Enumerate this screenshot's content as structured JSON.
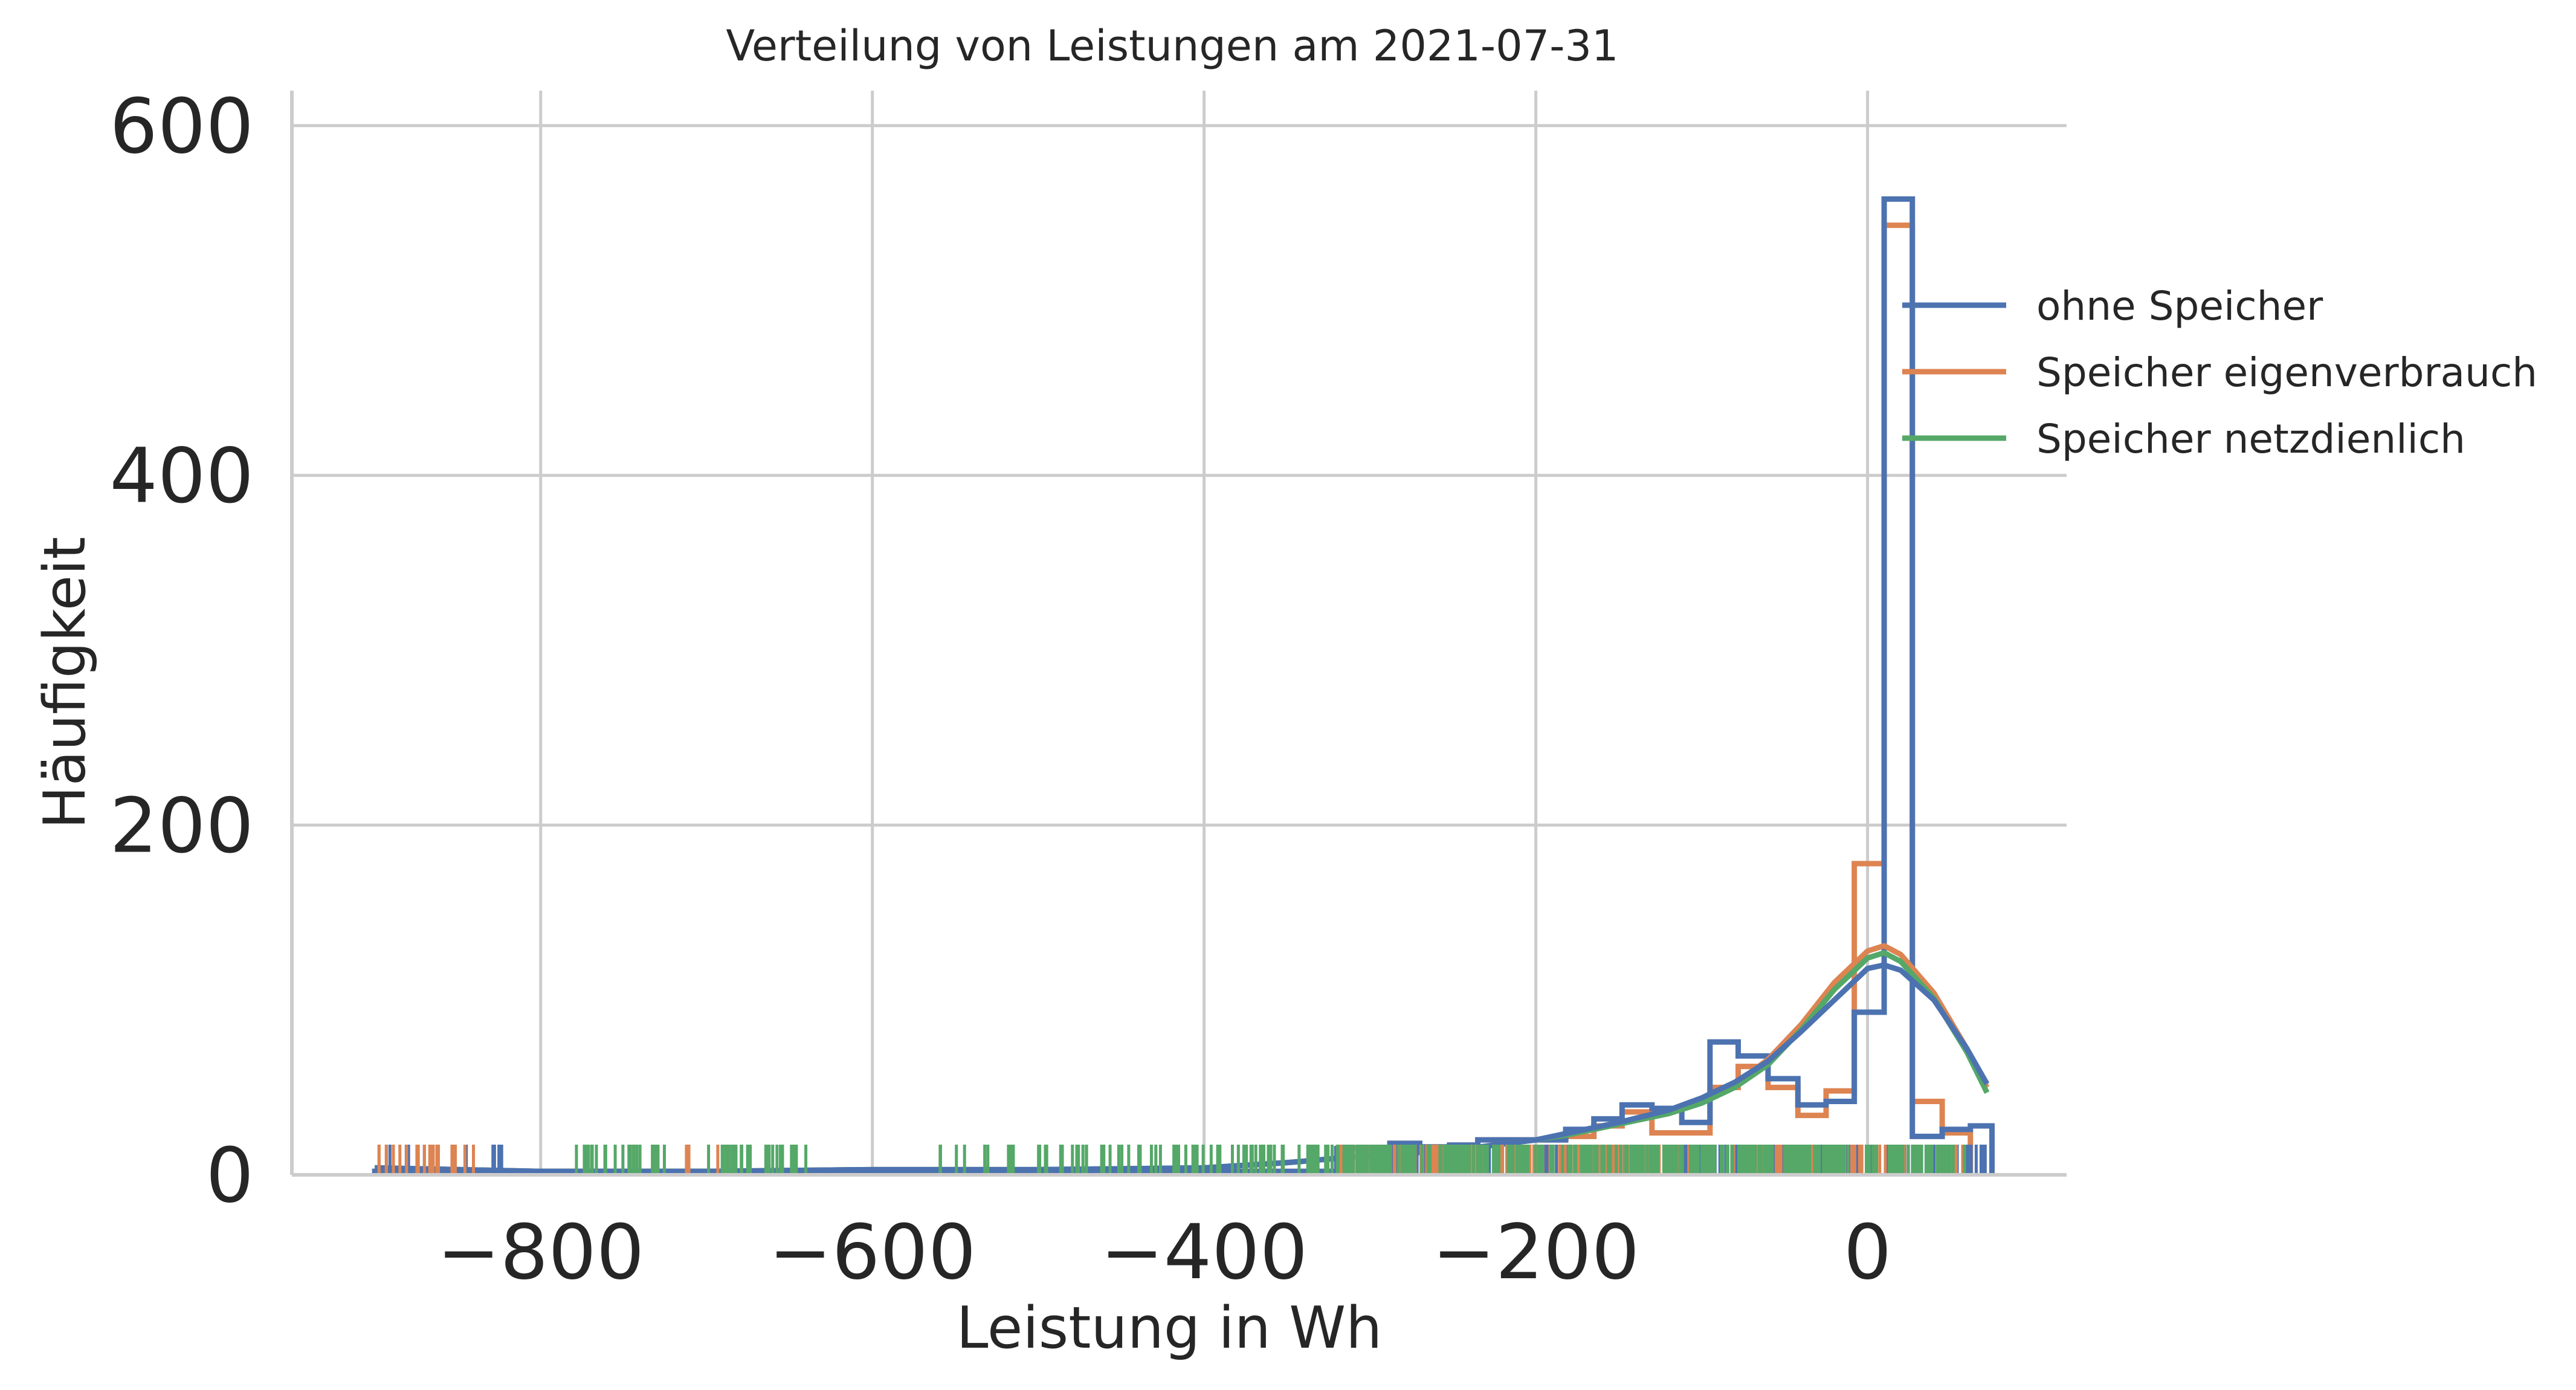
{
  "chart_data": {
    "type": "histogram",
    "title": "Verteilung von Leistungen am 2021-07-31",
    "xlabel": "Leistung in Wh",
    "ylabel": "Häufigkeit",
    "xlim": [
      -950,
      120
    ],
    "ylim": [
      0,
      620
    ],
    "xticks": [
      -800,
      -600,
      -400,
      -200,
      0
    ],
    "xtick_labels": [
      "−800",
      "−600",
      "−400",
      "−200",
      "0"
    ],
    "yticks": [
      0,
      200,
      400,
      600
    ],
    "ytick_labels": [
      "0",
      "200",
      "400",
      "600"
    ],
    "grid": true,
    "legend_position": "right",
    "bin_width": 17.5,
    "series": [
      {
        "name": "ohne Speicher",
        "color": "#4c72b0",
        "hist_edges": [
          -900,
          -320,
          -305,
          -288,
          -270,
          -252,
          -235,
          -218,
          -200,
          -182,
          -165,
          -148,
          -130,
          -112,
          -95,
          -78,
          -60,
          -42,
          -25,
          -8,
          10,
          27,
          45,
          62,
          75
        ],
        "hist_counts": [
          2,
          15,
          15,
          18,
          16,
          17,
          20,
          20,
          20,
          26,
          32,
          40,
          38,
          30,
          76,
          68,
          55,
          40,
          42,
          93,
          558,
          22,
          26,
          28
        ],
        "kde_x": [
          -900,
          -800,
          -700,
          -600,
          -500,
          -400,
          -350,
          -300,
          -250,
          -200,
          -180,
          -150,
          -120,
          -100,
          -80,
          -60,
          -40,
          -20,
          0,
          10,
          20,
          40,
          60,
          72
        ],
        "kde_y": [
          4,
          2,
          2,
          3,
          3,
          4,
          7,
          11,
          14,
          20,
          24,
          30,
          37,
          44,
          53,
          65,
          82,
          100,
          118,
          120,
          117,
          100,
          72,
          52
        ]
      },
      {
        "name": "Speicher eigenverbrauch",
        "color": "#dd8452",
        "hist_edges": [
          -900,
          -320,
          -305,
          -288,
          -270,
          -252,
          -235,
          -218,
          -200,
          -182,
          -165,
          -148,
          -130,
          -112,
          -95,
          -78,
          -60,
          -42,
          -25,
          -8,
          10,
          27,
          45,
          62
        ],
        "hist_counts": [
          2,
          15,
          15,
          18,
          16,
          17,
          20,
          20,
          20,
          22,
          28,
          36,
          24,
          24,
          50,
          62,
          50,
          34,
          48,
          178,
          543,
          42,
          24
        ],
        "kde_x": [
          -900,
          -800,
          -700,
          -600,
          -500,
          -400,
          -350,
          -300,
          -250,
          -200,
          -180,
          -150,
          -120,
          -100,
          -80,
          -60,
          -40,
          -20,
          0,
          10,
          20,
          40,
          60,
          72
        ],
        "kde_y": [
          4,
          2,
          2,
          3,
          3,
          4,
          7,
          11,
          14,
          20,
          23,
          29,
          36,
          42,
          52,
          66,
          86,
          110,
          128,
          131,
          126,
          104,
          72,
          50
        ]
      },
      {
        "name": "Speicher netzdienlich",
        "color": "#55a868",
        "kde_x": [
          -900,
          -800,
          -700,
          -600,
          -500,
          -400,
          -350,
          -300,
          -250,
          -200,
          -180,
          -150,
          -120,
          -100,
          -80,
          -60,
          -40,
          -20,
          0,
          10,
          20,
          40,
          60,
          72
        ],
        "kde_y": [
          4,
          2,
          2,
          3,
          3,
          4,
          7,
          11,
          14,
          20,
          23,
          29,
          35,
          41,
          50,
          63,
          83,
          106,
          124,
          127,
          122,
          101,
          70,
          47
        ]
      }
    ]
  }
}
